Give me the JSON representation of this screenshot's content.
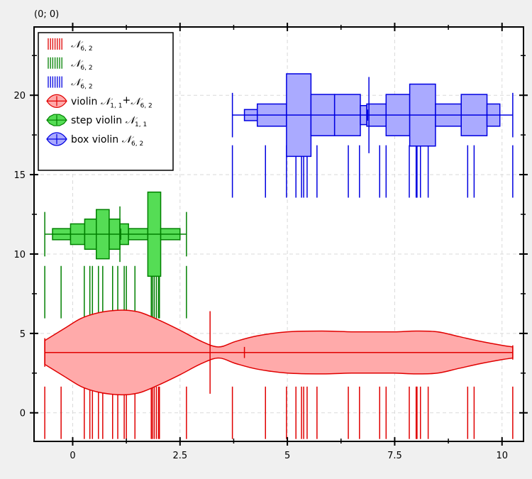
{
  "corner_label": "(0; 0)",
  "chart_data": {
    "type": "violin",
    "xlim": [
      -0.9,
      10.5
    ],
    "ylim": [
      -1.8,
      24.3
    ],
    "grid": true,
    "legend_position": "top-left",
    "x_ticks": [
      0,
      2.5,
      5,
      7.5,
      10
    ],
    "x_tick_labels": [
      "0",
      "2.5",
      "5",
      "7.5",
      "10"
    ],
    "y_ticks": [
      0,
      5,
      10,
      15,
      20
    ],
    "y_tick_labels": [
      "0",
      "5",
      "10",
      "15",
      "20"
    ],
    "series": [
      {
        "kind": "rug",
        "color": "#e00000",
        "y_center": 0,
        "legend": {
          "main": "𝒩",
          "sub": "6, 2"
        },
        "values": [
          -0.65,
          -0.27,
          0.27,
          0.4,
          0.46,
          0.6,
          0.7,
          0.93,
          1.05,
          1.2,
          1.25,
          1.45,
          1.83,
          1.86,
          1.9,
          1.95,
          2.0,
          2.02,
          2.65,
          3.72,
          4.49,
          4.98,
          5.2,
          5.33,
          5.38,
          5.46,
          5.69,
          6.42,
          6.68,
          7.15,
          7.3,
          7.84,
          8.0,
          8.02,
          8.1,
          8.28,
          9.2,
          9.35,
          10.25
        ]
      },
      {
        "kind": "rug",
        "color": "#008000",
        "y_center": 7.6,
        "legend": {
          "main": "𝒩",
          "sub": "6, 2"
        },
        "values": [
          -0.65,
          -0.27,
          0.27,
          0.4,
          0.46,
          0.6,
          0.7,
          0.93,
          1.05,
          1.2,
          1.25,
          1.45,
          1.83,
          1.86,
          1.9,
          1.95,
          2.0,
          2.02,
          2.65
        ]
      },
      {
        "kind": "rug",
        "color": "#0000e0",
        "y_center": 15.2,
        "legend": {
          "main": "𝒩",
          "sub": "6, 2"
        },
        "values": [
          3.72,
          4.49,
          4.98,
          5.2,
          5.33,
          5.38,
          5.46,
          5.69,
          6.42,
          6.68,
          7.15,
          7.3,
          7.84,
          8.0,
          8.02,
          8.1,
          8.28,
          9.2,
          9.35,
          10.25
        ]
      },
      {
        "kind": "violin",
        "color": "#e00000",
        "fill": "#ffaaaa",
        "y_center": 3.8,
        "legend": {
          "prefix": "violin ",
          "main": "𝒩",
          "sub": "1, 1",
          "plus": "+",
          "main2": "𝒩",
          "sub2": "6, 2"
        },
        "min": -0.65,
        "max": 10.25,
        "median": 3.2,
        "median_halfheight": 2.6,
        "mean": 4.0,
        "profile_x": [
          -0.65,
          -0.2,
          0.2,
          0.6,
          1.0,
          1.3,
          1.6,
          2.0,
          2.5,
          3.0,
          3.4,
          3.8,
          4.3,
          5.0,
          5.8,
          6.5,
          7.0,
          7.5,
          8.0,
          8.5,
          9.0,
          9.5,
          10.0,
          10.25
        ],
        "profile_w": [
          0.75,
          1.5,
          2.15,
          2.5,
          2.65,
          2.65,
          2.5,
          2.05,
          1.4,
          0.7,
          0.35,
          0.7,
          1.05,
          1.3,
          1.35,
          1.3,
          1.3,
          1.3,
          1.35,
          1.3,
          1.0,
          0.7,
          0.45,
          0.35
        ]
      },
      {
        "kind": "step_violin",
        "color": "#008000",
        "fill": "#55dd55",
        "y_center": 11.25,
        "legend": {
          "prefix": "step violin ",
          "main": "𝒩",
          "sub": "1, 1"
        },
        "min": -0.65,
        "max": 2.65,
        "median": 1.1,
        "median_halfheight": 1.3,
        "mean": 1.12,
        "bins_x": [
          -0.47,
          -0.05,
          0.28,
          0.55,
          0.85,
          1.1,
          1.3,
          1.75,
          2.05,
          2.5
        ],
        "bins_w": [
          0.35,
          0.65,
          0.95,
          1.55,
          0.95,
          0.65,
          0.35,
          2.65,
          0.35
        ]
      },
      {
        "kind": "box_violin",
        "color": "#0000e0",
        "fill": "#aaaaff",
        "y_center": 18.75,
        "legend": {
          "prefix": "box violin ",
          "main": "𝒩",
          "sub": "6, 2"
        },
        "min": 3.72,
        "max": 10.25,
        "median": 6.9,
        "median_halfheight": 1.95,
        "mean": 6.87,
        "bins_x": [
          4.0,
          4.3,
          4.98,
          5.55,
          6.1,
          6.7,
          6.85,
          7.3,
          7.85,
          8.45,
          9.05,
          9.65,
          9.95
        ],
        "bins_w": [
          0.35,
          0.7,
          2.6,
          1.3,
          1.3,
          0.6,
          0.7,
          1.3,
          1.95,
          0.7,
          1.3,
          0.7
        ]
      }
    ]
  }
}
